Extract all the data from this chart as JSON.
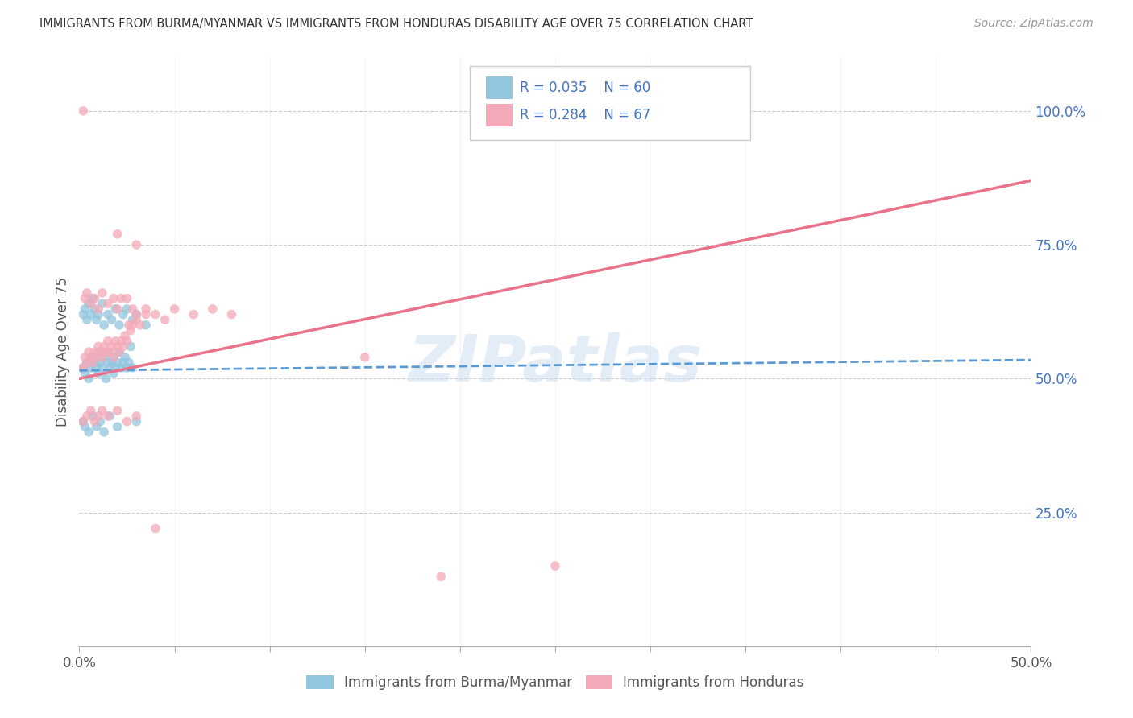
{
  "title": "IMMIGRANTS FROM BURMA/MYANMAR VS IMMIGRANTS FROM HONDURAS DISABILITY AGE OVER 75 CORRELATION CHART",
  "source": "Source: ZipAtlas.com",
  "ylabel": "Disability Age Over 75",
  "ytick_labels": [
    "100.0%",
    "75.0%",
    "50.0%",
    "25.0%"
  ],
  "ytick_positions": [
    1.0,
    0.75,
    0.5,
    0.25
  ],
  "xlim": [
    0.0,
    0.5
  ],
  "ylim": [
    0.0,
    1.1
  ],
  "legend_r1": "R = 0.035",
  "legend_n1": "N = 60",
  "legend_r2": "R = 0.284",
  "legend_n2": "N = 67",
  "legend_label1": "Immigrants from Burma/Myanmar",
  "legend_label2": "Immigrants from Honduras",
  "color_blue": "#92C5DE",
  "color_pink": "#F4A9B8",
  "scatter_alpha": 0.75,
  "scatter_size": 70,
  "trend_blue_color": "#5B9BD5",
  "trend_pink_color": "#E8728A",
  "watermark": "ZIPatlas",
  "watermark_color": "#C8DCF0",
  "watermark_alpha": 0.5,
  "blue_x": [
    0.002,
    0.003,
    0.004,
    0.005,
    0.006,
    0.007,
    0.008,
    0.009,
    0.01,
    0.01,
    0.011,
    0.012,
    0.013,
    0.014,
    0.015,
    0.015,
    0.016,
    0.017,
    0.018,
    0.018,
    0.019,
    0.02,
    0.021,
    0.022,
    0.023,
    0.024,
    0.025,
    0.026,
    0.027,
    0.028,
    0.002,
    0.003,
    0.004,
    0.005,
    0.006,
    0.007,
    0.008,
    0.009,
    0.01,
    0.012,
    0.013,
    0.015,
    0.017,
    0.019,
    0.021,
    0.023,
    0.025,
    0.028,
    0.03,
    0.035,
    0.002,
    0.003,
    0.005,
    0.007,
    0.009,
    0.011,
    0.013,
    0.016,
    0.02,
    0.03
  ],
  "blue_y": [
    0.52,
    0.51,
    0.53,
    0.5,
    0.52,
    0.54,
    0.53,
    0.52,
    0.55,
    0.51,
    0.53,
    0.52,
    0.54,
    0.5,
    0.53,
    0.55,
    0.52,
    0.53,
    0.51,
    0.54,
    0.52,
    0.53,
    0.55,
    0.52,
    0.53,
    0.54,
    0.52,
    0.53,
    0.56,
    0.52,
    0.62,
    0.63,
    0.61,
    0.64,
    0.62,
    0.65,
    0.63,
    0.61,
    0.62,
    0.64,
    0.6,
    0.62,
    0.61,
    0.63,
    0.6,
    0.62,
    0.63,
    0.61,
    0.62,
    0.6,
    0.42,
    0.41,
    0.4,
    0.43,
    0.41,
    0.42,
    0.4,
    0.43,
    0.41,
    0.42
  ],
  "pink_x": [
    0.002,
    0.003,
    0.004,
    0.005,
    0.006,
    0.007,
    0.008,
    0.009,
    0.01,
    0.011,
    0.012,
    0.013,
    0.014,
    0.015,
    0.016,
    0.017,
    0.018,
    0.019,
    0.02,
    0.021,
    0.022,
    0.023,
    0.024,
    0.025,
    0.026,
    0.027,
    0.028,
    0.03,
    0.032,
    0.035,
    0.003,
    0.004,
    0.006,
    0.008,
    0.01,
    0.012,
    0.015,
    0.018,
    0.02,
    0.022,
    0.025,
    0.028,
    0.03,
    0.035,
    0.04,
    0.045,
    0.05,
    0.06,
    0.07,
    0.08,
    0.002,
    0.004,
    0.006,
    0.008,
    0.01,
    0.012,
    0.015,
    0.02,
    0.025,
    0.03,
    0.002,
    0.02,
    0.03,
    0.15,
    0.19,
    0.25,
    0.04
  ],
  "pink_y": [
    0.52,
    0.54,
    0.53,
    0.55,
    0.54,
    0.53,
    0.55,
    0.54,
    0.56,
    0.55,
    0.54,
    0.56,
    0.55,
    0.57,
    0.55,
    0.56,
    0.54,
    0.57,
    0.56,
    0.55,
    0.57,
    0.56,
    0.58,
    0.57,
    0.6,
    0.59,
    0.6,
    0.61,
    0.6,
    0.62,
    0.65,
    0.66,
    0.64,
    0.65,
    0.63,
    0.66,
    0.64,
    0.65,
    0.63,
    0.65,
    0.65,
    0.63,
    0.62,
    0.63,
    0.62,
    0.61,
    0.63,
    0.62,
    0.63,
    0.62,
    0.42,
    0.43,
    0.44,
    0.42,
    0.43,
    0.44,
    0.43,
    0.44,
    0.42,
    0.43,
    1.0,
    0.77,
    0.75,
    0.54,
    0.13,
    0.15,
    0.22
  ]
}
